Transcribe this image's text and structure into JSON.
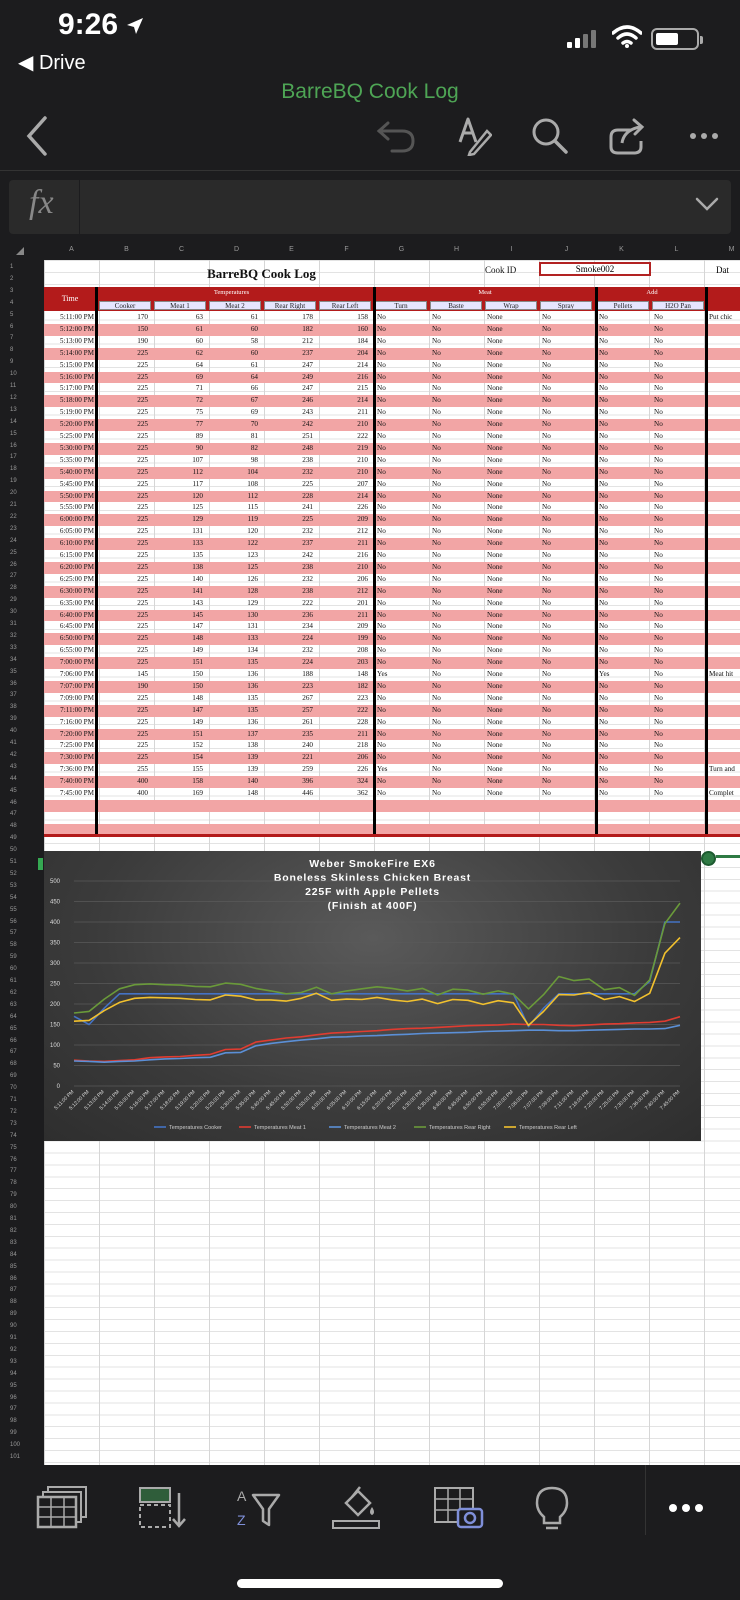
{
  "status": {
    "time": "9:26",
    "back_app": "Drive",
    "icons": [
      "location-arrow-icon",
      "cell-signal-icon",
      "wifi-icon",
      "battery-icon"
    ]
  },
  "document": {
    "title": "BarreBQ Cook Log"
  },
  "toolbar": {
    "icons": [
      "back-chevron-icon",
      "undo-icon",
      "draw-pen-icon",
      "search-icon",
      "share-icon",
      "more-icon"
    ]
  },
  "formula_bar": {
    "fx": "fx",
    "content": ""
  },
  "sheet": {
    "column_letters": [
      "A",
      "B",
      "C",
      "D",
      "E",
      "F",
      "G",
      "H",
      "I",
      "J",
      "K",
      "L",
      "M"
    ],
    "title": "BarreBQ Cook Log",
    "cook_id_label": "Cook ID",
    "cook_id_value": "Smoke002",
    "date_label": "Dat",
    "header_time": "Time",
    "group_temperatures": "Temperatures",
    "group_meat": "Meat",
    "group_add": "Add",
    "subheaders": [
      "Cooker",
      "Meat 1",
      "Meat 2",
      "Rear Right",
      "Rear Left",
      "Turn",
      "Baste",
      "Wrap",
      "Spray",
      "Pellets",
      "H2O Pan"
    ],
    "rows": [
      [
        "5:11:00 PM",
        "170",
        "63",
        "61",
        "178",
        "158",
        "No",
        "No",
        "None",
        "No",
        "No",
        "No",
        "Put chic"
      ],
      [
        "5:12:00 PM",
        "150",
        "61",
        "60",
        "182",
        "160",
        "No",
        "No",
        "None",
        "No",
        "No",
        "No",
        ""
      ],
      [
        "5:13:00 PM",
        "190",
        "60",
        "58",
        "212",
        "184",
        "No",
        "No",
        "None",
        "No",
        "No",
        "No",
        ""
      ],
      [
        "5:14:00 PM",
        "225",
        "62",
        "60",
        "237",
        "204",
        "No",
        "No",
        "None",
        "No",
        "No",
        "No",
        ""
      ],
      [
        "5:15:00 PM",
        "225",
        "64",
        "61",
        "247",
        "214",
        "No",
        "No",
        "None",
        "No",
        "No",
        "No",
        ""
      ],
      [
        "5:16:00 PM",
        "225",
        "69",
        "64",
        "249",
        "216",
        "No",
        "No",
        "None",
        "No",
        "No",
        "No",
        ""
      ],
      [
        "5:17:00 PM",
        "225",
        "71",
        "66",
        "247",
        "215",
        "No",
        "No",
        "None",
        "No",
        "No",
        "No",
        ""
      ],
      [
        "5:18:00 PM",
        "225",
        "72",
        "67",
        "246",
        "214",
        "No",
        "No",
        "None",
        "No",
        "No",
        "No",
        ""
      ],
      [
        "5:19:00 PM",
        "225",
        "75",
        "69",
        "243",
        "211",
        "No",
        "No",
        "None",
        "No",
        "No",
        "No",
        ""
      ],
      [
        "5:20:00 PM",
        "225",
        "77",
        "70",
        "242",
        "210",
        "No",
        "No",
        "None",
        "No",
        "No",
        "No",
        ""
      ],
      [
        "5:25:00 PM",
        "225",
        "89",
        "81",
        "251",
        "222",
        "No",
        "No",
        "None",
        "No",
        "No",
        "No",
        ""
      ],
      [
        "5:30:00 PM",
        "225",
        "90",
        "82",
        "248",
        "219",
        "No",
        "No",
        "None",
        "No",
        "No",
        "No",
        ""
      ],
      [
        "5:35:00 PM",
        "225",
        "107",
        "98",
        "238",
        "210",
        "No",
        "No",
        "None",
        "No",
        "No",
        "No",
        ""
      ],
      [
        "5:40:00 PM",
        "225",
        "112",
        "104",
        "232",
        "210",
        "No",
        "No",
        "None",
        "No",
        "No",
        "No",
        ""
      ],
      [
        "5:45:00 PM",
        "225",
        "117",
        "108",
        "225",
        "207",
        "No",
        "No",
        "None",
        "No",
        "No",
        "No",
        ""
      ],
      [
        "5:50:00 PM",
        "225",
        "120",
        "112",
        "228",
        "214",
        "No",
        "No",
        "None",
        "No",
        "No",
        "No",
        ""
      ],
      [
        "5:55:00 PM",
        "225",
        "125",
        "115",
        "241",
        "226",
        "No",
        "No",
        "None",
        "No",
        "No",
        "No",
        ""
      ],
      [
        "6:00:00 PM",
        "225",
        "129",
        "119",
        "225",
        "209",
        "No",
        "No",
        "None",
        "No",
        "No",
        "No",
        ""
      ],
      [
        "6:05:00 PM",
        "225",
        "131",
        "120",
        "232",
        "212",
        "No",
        "No",
        "None",
        "No",
        "No",
        "No",
        ""
      ],
      [
        "6:10:00 PM",
        "225",
        "133",
        "122",
        "237",
        "211",
        "No",
        "No",
        "None",
        "No",
        "No",
        "No",
        ""
      ],
      [
        "6:15:00 PM",
        "225",
        "135",
        "123",
        "242",
        "216",
        "No",
        "No",
        "None",
        "No",
        "No",
        "No",
        ""
      ],
      [
        "6:20:00 PM",
        "225",
        "138",
        "125",
        "238",
        "210",
        "No",
        "No",
        "None",
        "No",
        "No",
        "No",
        ""
      ],
      [
        "6:25:00 PM",
        "225",
        "140",
        "126",
        "232",
        "206",
        "No",
        "No",
        "None",
        "No",
        "No",
        "No",
        ""
      ],
      [
        "6:30:00 PM",
        "225",
        "141",
        "128",
        "238",
        "212",
        "No",
        "No",
        "None",
        "No",
        "No",
        "No",
        ""
      ],
      [
        "6:35:00 PM",
        "225",
        "143",
        "129",
        "222",
        "201",
        "No",
        "No",
        "None",
        "No",
        "No",
        "No",
        ""
      ],
      [
        "6:40:00 PM",
        "225",
        "145",
        "130",
        "236",
        "211",
        "No",
        "No",
        "None",
        "No",
        "No",
        "No",
        ""
      ],
      [
        "6:45:00 PM",
        "225",
        "147",
        "131",
        "234",
        "209",
        "No",
        "No",
        "None",
        "No",
        "No",
        "No",
        ""
      ],
      [
        "6:50:00 PM",
        "225",
        "148",
        "133",
        "224",
        "199",
        "No",
        "No",
        "None",
        "No",
        "No",
        "No",
        ""
      ],
      [
        "6:55:00 PM",
        "225",
        "149",
        "134",
        "232",
        "208",
        "No",
        "No",
        "None",
        "No",
        "No",
        "No",
        ""
      ],
      [
        "7:00:00 PM",
        "225",
        "151",
        "135",
        "224",
        "203",
        "No",
        "No",
        "None",
        "No",
        "No",
        "No",
        ""
      ],
      [
        "7:06:00 PM",
        "145",
        "150",
        "136",
        "188",
        "148",
        "Yes",
        "No",
        "None",
        "No",
        "Yes",
        "No",
        "Meat hit"
      ],
      [
        "7:07:00 PM",
        "190",
        "150",
        "136",
        "223",
        "182",
        "No",
        "No",
        "None",
        "No",
        "No",
        "No",
        ""
      ],
      [
        "7:09:00 PM",
        "225",
        "148",
        "135",
        "267",
        "223",
        "No",
        "No",
        "None",
        "No",
        "No",
        "No",
        ""
      ],
      [
        "7:11:00 PM",
        "225",
        "147",
        "135",
        "257",
        "222",
        "No",
        "No",
        "None",
        "No",
        "No",
        "No",
        ""
      ],
      [
        "7:16:00 PM",
        "225",
        "149",
        "136",
        "261",
        "228",
        "No",
        "No",
        "None",
        "No",
        "No",
        "No",
        ""
      ],
      [
        "7:20:00 PM",
        "225",
        "151",
        "137",
        "235",
        "211",
        "No",
        "No",
        "None",
        "No",
        "No",
        "No",
        ""
      ],
      [
        "7:25:00 PM",
        "225",
        "152",
        "138",
        "240",
        "218",
        "No",
        "No",
        "None",
        "No",
        "No",
        "No",
        ""
      ],
      [
        "7:30:00 PM",
        "225",
        "154",
        "139",
        "221",
        "206",
        "No",
        "No",
        "None",
        "No",
        "No",
        "No",
        ""
      ],
      [
        "7:36:00 PM",
        "255",
        "155",
        "139",
        "259",
        "226",
        "Yes",
        "No",
        "None",
        "No",
        "No",
        "No",
        "Turn and"
      ],
      [
        "7:40:00 PM",
        "400",
        "158",
        "140",
        "396",
        "324",
        "No",
        "No",
        "None",
        "No",
        "No",
        "No",
        ""
      ],
      [
        "7:45:00 PM",
        "400",
        "169",
        "148",
        "446",
        "362",
        "No",
        "No",
        "None",
        "No",
        "No",
        "No",
        "Complet"
      ]
    ]
  },
  "colors": {
    "accent_green": "#4ea555",
    "header_red": "#b31b1b",
    "row_pink": "#f2a5a5",
    "subheader_fill": "#e6e6ff"
  },
  "chart_data": {
    "type": "line",
    "title": "Weber SmokeFire EX6\nBoneless Skinless Chicken Breast\n225F with Apple Pellets\n(Finish at 400F)",
    "title_lines": [
      "Weber SmokeFire EX6",
      "Boneless Skinless Chicken Breast",
      "225F with Apple Pellets",
      "(Finish at 400F)"
    ],
    "xlabel": "",
    "ylabel": "",
    "ylim": [
      0,
      500
    ],
    "yticks": [
      0,
      50,
      100,
      150,
      200,
      250,
      300,
      350,
      400,
      450,
      500
    ],
    "grid": true,
    "legend_position": "bottom",
    "x": [
      "5:11:00 PM",
      "5:12:00 PM",
      "5:13:00 PM",
      "5:14:00 PM",
      "5:15:00 PM",
      "5:16:00 PM",
      "5:17:00 PM",
      "5:18:00 PM",
      "5:19:00 PM",
      "5:20:00 PM",
      "5:25:00 PM",
      "5:30:00 PM",
      "5:35:00 PM",
      "5:40:00 PM",
      "5:45:00 PM",
      "5:50:00 PM",
      "5:55:00 PM",
      "6:00:00 PM",
      "6:05:00 PM",
      "6:10:00 PM",
      "6:15:00 PM",
      "6:20:00 PM",
      "6:25:00 PM",
      "6:30:00 PM",
      "6:35:00 PM",
      "6:40:00 PM",
      "6:45:00 PM",
      "6:50:00 PM",
      "6:55:00 PM",
      "7:00:00 PM",
      "7:06:00 PM",
      "7:07:00 PM",
      "7:09:00 PM",
      "7:11:00 PM",
      "7:16:00 PM",
      "7:20:00 PM",
      "7:25:00 PM",
      "7:30:00 PM",
      "7:36:00 PM",
      "7:40:00 PM",
      "7:45:00 PM"
    ],
    "series": [
      {
        "name": "Temperatures Cooker",
        "color": "#4472c4",
        "values": [
          170,
          150,
          190,
          225,
          225,
          225,
          225,
          225,
          225,
          225,
          225,
          225,
          225,
          225,
          225,
          225,
          225,
          225,
          225,
          225,
          225,
          225,
          225,
          225,
          225,
          225,
          225,
          225,
          225,
          225,
          145,
          190,
          225,
          225,
          225,
          225,
          225,
          225,
          255,
          400,
          400
        ]
      },
      {
        "name": "Temperatures Meat 1",
        "color": "#e03c31",
        "values": [
          63,
          61,
          60,
          62,
          64,
          69,
          71,
          72,
          75,
          77,
          89,
          90,
          107,
          112,
          117,
          120,
          125,
          129,
          131,
          133,
          135,
          138,
          140,
          141,
          143,
          145,
          147,
          148,
          149,
          151,
          150,
          150,
          148,
          147,
          149,
          151,
          152,
          154,
          155,
          158,
          169
        ]
      },
      {
        "name": "Temperatures Meat 2",
        "color": "#5b8fd6",
        "values": [
          61,
          60,
          58,
          60,
          61,
          64,
          66,
          67,
          69,
          70,
          81,
          82,
          98,
          104,
          108,
          112,
          115,
          119,
          120,
          122,
          123,
          125,
          126,
          128,
          129,
          130,
          131,
          133,
          134,
          135,
          136,
          136,
          135,
          135,
          136,
          137,
          138,
          139,
          139,
          140,
          148
        ]
      },
      {
        "name": "Temperatures Rear Right",
        "color": "#6a9a3a",
        "values": [
          178,
          182,
          212,
          237,
          247,
          249,
          247,
          246,
          243,
          242,
          251,
          248,
          238,
          232,
          225,
          228,
          241,
          225,
          232,
          237,
          242,
          238,
          232,
          238,
          222,
          236,
          234,
          224,
          232,
          224,
          188,
          223,
          267,
          257,
          261,
          235,
          240,
          221,
          259,
          396,
          446
        ]
      },
      {
        "name": "Temperatures Rear Left",
        "color": "#f2c12e",
        "values": [
          158,
          160,
          184,
          204,
          214,
          216,
          215,
          214,
          211,
          210,
          222,
          219,
          210,
          210,
          207,
          214,
          226,
          209,
          212,
          211,
          216,
          210,
          206,
          212,
          201,
          211,
          209,
          199,
          208,
          203,
          148,
          182,
          223,
          222,
          228,
          211,
          218,
          206,
          226,
          324,
          362
        ]
      }
    ]
  },
  "bottom_bar": {
    "icons": [
      "sheets-icon",
      "sort-icon",
      "filter-icon",
      "fill-icon",
      "insert-picture-icon",
      "ideas-bulb-icon",
      "more-icon"
    ]
  }
}
